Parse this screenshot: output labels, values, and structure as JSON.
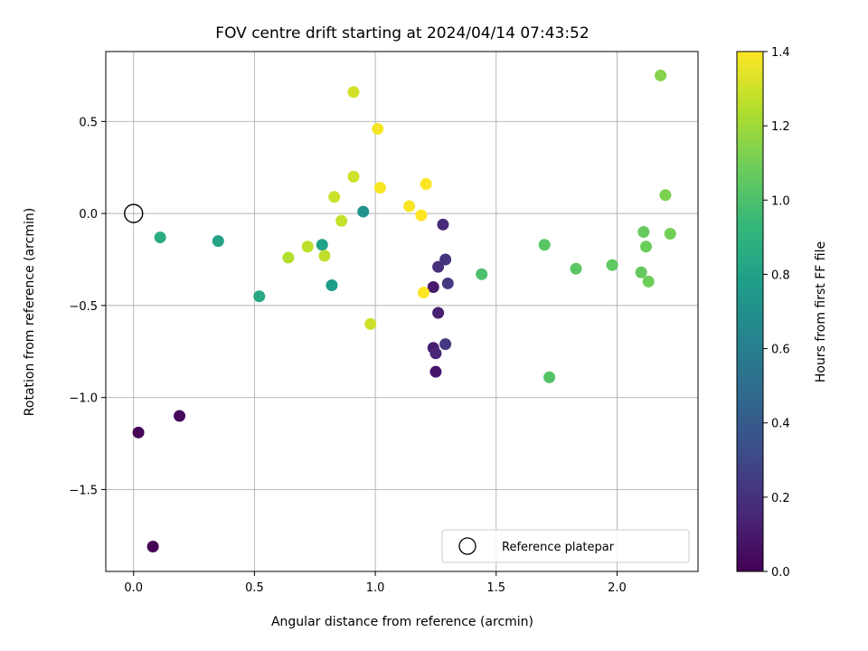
{
  "chart_data": {
    "type": "scatter",
    "title": "FOV centre drift starting at 2024/04/14 07:43:52",
    "xlabel": "Angular distance from reference (arcmin)",
    "ylabel": "Rotation from reference (arcmin)",
    "xlim": [
      -0.115,
      2.335
    ],
    "ylim": [
      -1.945,
      0.88
    ],
    "xticks": [
      0.0,
      0.5,
      1.0,
      1.5,
      2.0
    ],
    "xtick_labels": [
      "0.0",
      "0.5",
      "1.0",
      "1.5",
      "2.0"
    ],
    "yticks": [
      0.5,
      0.0,
      -0.5,
      -1.0,
      -1.5
    ],
    "ytick_labels": [
      "0.5",
      "0.0",
      "−0.5",
      "−1.0",
      "−1.5"
    ],
    "grid": true,
    "colormap": "viridis",
    "colorbar": {
      "label": "Hours from first FF file",
      "range": [
        0.0,
        1.4
      ],
      "ticks": [
        0.0,
        0.2,
        0.4,
        0.6,
        0.8,
        1.0,
        1.2,
        1.4
      ],
      "tick_labels": [
        "0.0",
        "0.2",
        "0.4",
        "0.6",
        "0.8",
        "1.0",
        "1.2",
        "1.4"
      ]
    },
    "reference": {
      "name": "Reference platepar",
      "x": 0.0,
      "y": 0.0
    },
    "legend": {
      "position": "lower-right",
      "entries": [
        "Reference platepar"
      ]
    },
    "points": [
      {
        "x": 0.08,
        "y": -1.81,
        "c": 0.0
      },
      {
        "x": 0.02,
        "y": -1.19,
        "c": 0.02
      },
      {
        "x": 0.19,
        "y": -1.1,
        "c": 0.03
      },
      {
        "x": 1.25,
        "y": -0.86,
        "c": 0.08
      },
      {
        "x": 1.24,
        "y": -0.4,
        "c": 0.1
      },
      {
        "x": 1.24,
        "y": -0.73,
        "c": 0.12
      },
      {
        "x": 1.26,
        "y": -0.54,
        "c": 0.13
      },
      {
        "x": 1.25,
        "y": -0.76,
        "c": 0.15
      },
      {
        "x": 1.28,
        "y": -0.06,
        "c": 0.17
      },
      {
        "x": 1.26,
        "y": -0.29,
        "c": 0.19
      },
      {
        "x": 1.29,
        "y": -0.25,
        "c": 0.2
      },
      {
        "x": 1.29,
        "y": -0.71,
        "c": 0.22
      },
      {
        "x": 1.3,
        "y": -0.38,
        "c": 0.24
      },
      {
        "x": 0.95,
        "y": 0.01,
        "c": 0.73
      },
      {
        "x": 0.82,
        "y": -0.39,
        "c": 0.77
      },
      {
        "x": 0.78,
        "y": -0.17,
        "c": 0.79
      },
      {
        "x": 0.35,
        "y": -0.15,
        "c": 0.81
      },
      {
        "x": 0.52,
        "y": -0.45,
        "c": 0.84
      },
      {
        "x": 0.11,
        "y": -0.13,
        "c": 0.86
      },
      {
        "x": 1.44,
        "y": -0.33,
        "c": 1.0
      },
      {
        "x": 1.72,
        "y": -0.89,
        "c": 1.02
      },
      {
        "x": 1.7,
        "y": -0.17,
        "c": 1.03
      },
      {
        "x": 1.83,
        "y": -0.3,
        "c": 1.04
      },
      {
        "x": 1.98,
        "y": -0.28,
        "c": 1.05
      },
      {
        "x": 2.1,
        "y": -0.32,
        "c": 1.06
      },
      {
        "x": 2.11,
        "y": -0.1,
        "c": 1.07
      },
      {
        "x": 2.12,
        "y": -0.18,
        "c": 1.08
      },
      {
        "x": 2.13,
        "y": -0.37,
        "c": 1.09
      },
      {
        "x": 2.22,
        "y": -0.11,
        "c": 1.1
      },
      {
        "x": 2.2,
        "y": 0.1,
        "c": 1.12
      },
      {
        "x": 2.18,
        "y": 0.75,
        "c": 1.14
      },
      {
        "x": 0.64,
        "y": -0.24,
        "c": 1.24
      },
      {
        "x": 0.72,
        "y": -0.18,
        "c": 1.26
      },
      {
        "x": 0.79,
        "y": -0.23,
        "c": 1.27
      },
      {
        "x": 0.86,
        "y": -0.04,
        "c": 1.28
      },
      {
        "x": 0.83,
        "y": 0.09,
        "c": 1.29
      },
      {
        "x": 0.91,
        "y": 0.2,
        "c": 1.3
      },
      {
        "x": 0.98,
        "y": -0.6,
        "c": 1.3
      },
      {
        "x": 0.91,
        "y": 0.66,
        "c": 1.31
      },
      {
        "x": 1.01,
        "y": 0.46,
        "c": 1.38
      },
      {
        "x": 1.02,
        "y": 0.14,
        "c": 1.39
      },
      {
        "x": 1.14,
        "y": 0.04,
        "c": 1.39
      },
      {
        "x": 1.19,
        "y": -0.01,
        "c": 1.4
      },
      {
        "x": 1.21,
        "y": 0.16,
        "c": 1.4
      },
      {
        "x": 1.2,
        "y": -0.43,
        "c": 1.4
      }
    ]
  }
}
